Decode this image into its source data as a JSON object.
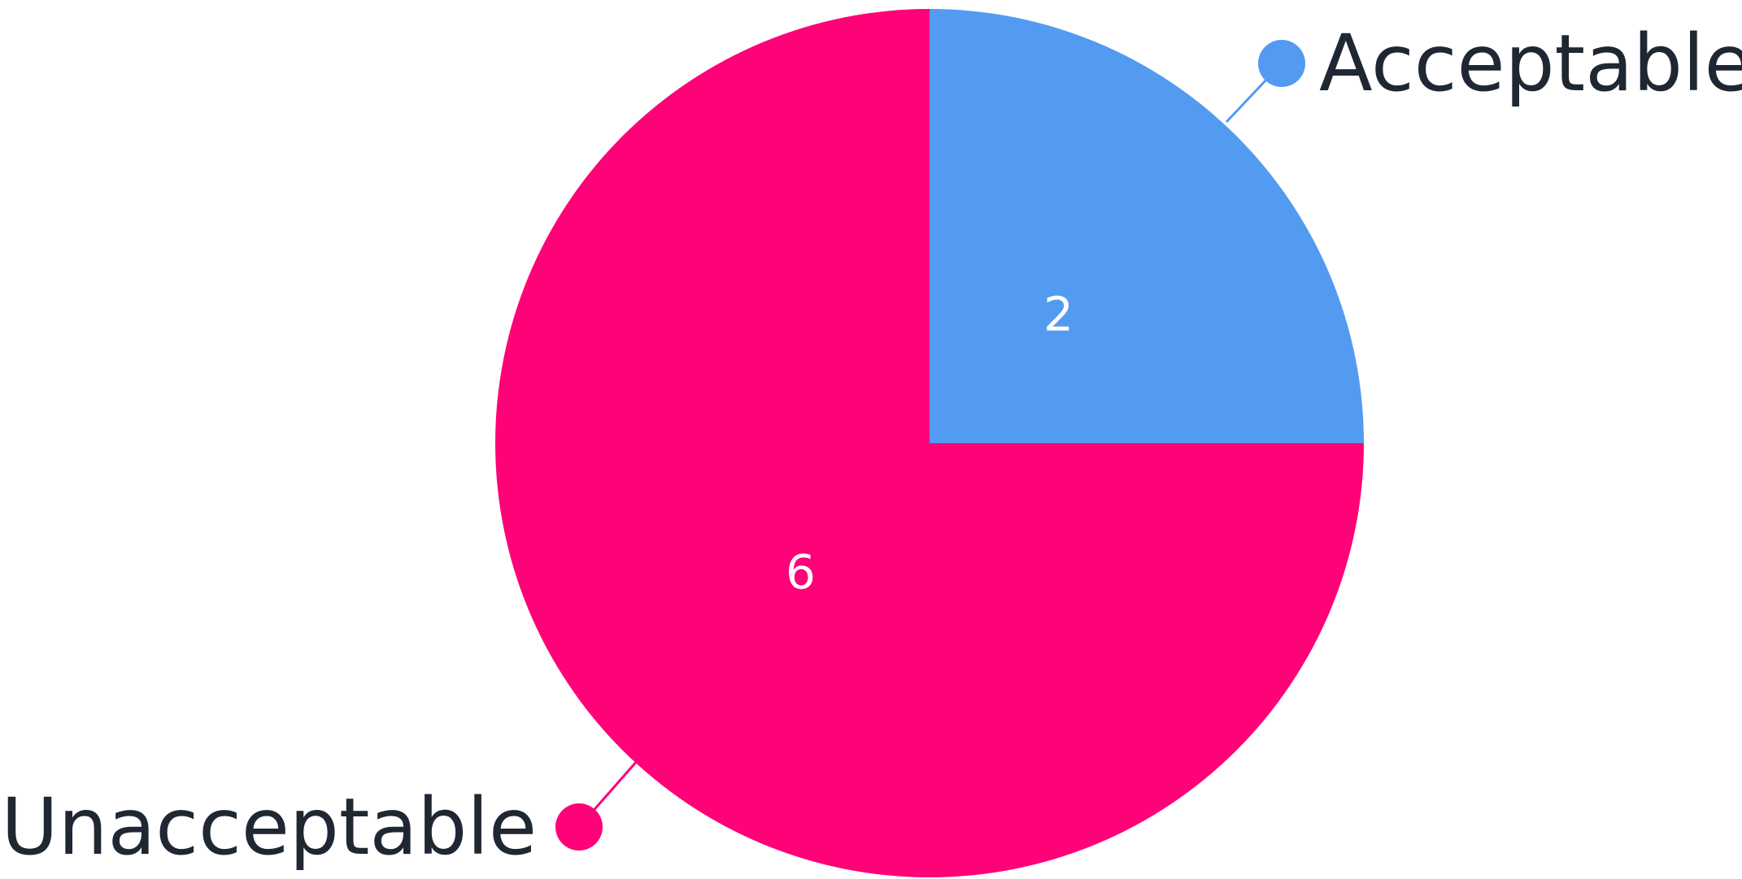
{
  "chart_data": {
    "type": "pie",
    "categories": [
      "Acceptable",
      "Unacceptable"
    ],
    "values": [
      2,
      6
    ],
    "colors": [
      "#539BF0",
      "#FF0277"
    ],
    "value_labels": [
      "2",
      "6"
    ],
    "legend_labels": [
      "Acceptable",
      "Unacceptable"
    ],
    "legend_colors": [
      "#539BF0",
      "#FF0277"
    ],
    "title": "",
    "start_angle_deg": 0,
    "direction": "clockwise",
    "label_style": "callout",
    "legend_placement": "callouts"
  }
}
